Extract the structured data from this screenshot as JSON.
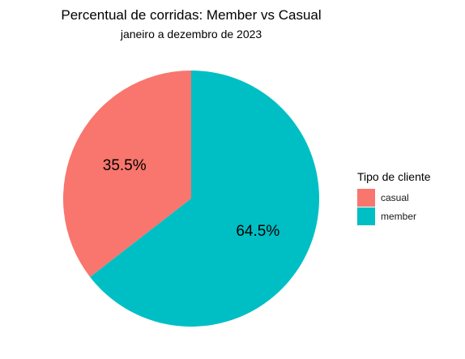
{
  "chart_data": {
    "type": "pie",
    "title": "Percentual de corridas: Member vs Casual",
    "subtitle": "janeiro a dezembro de 2023",
    "slices": [
      {
        "name": "casual",
        "value": 35.5,
        "label": "35.5%",
        "color": "#F8766D"
      },
      {
        "name": "member",
        "value": 64.5,
        "label": "64.5%",
        "color": "#00BFC4"
      }
    ],
    "start_angle_deg": 0,
    "direction": "counterclockwise",
    "legend": {
      "title": "Tipo de cliente",
      "placement": "right",
      "entries": [
        {
          "label": "casual",
          "color": "#F8766D"
        },
        {
          "label": "member",
          "color": "#00BFC4"
        }
      ]
    }
  }
}
